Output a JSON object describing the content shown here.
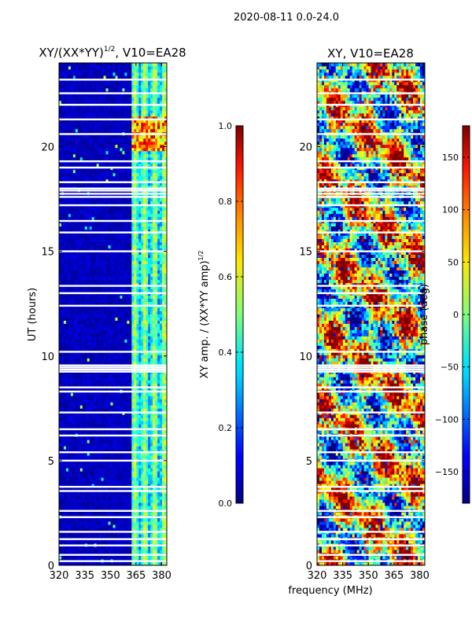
{
  "page": {
    "suptitle": "2020-08-11 0.0-24.0"
  },
  "chart_data": [
    {
      "type": "heatmap",
      "title": "XY/(XX*YY)",
      "title_sup": "1/2",
      "title_suffix": ", V10=EA28",
      "xlabel": "",
      "ylabel": "UT (hours)",
      "xlim": [
        320,
        383
      ],
      "ylim": [
        0,
        24
      ],
      "xticks": [
        320,
        335,
        350,
        365,
        380
      ],
      "yticks": [
        0,
        5,
        10,
        15,
        20
      ],
      "colorbar": {
        "label": "XY amp. / (XX*YY amp)",
        "label_sup": "1/2",
        "range": [
          0.0,
          1.0
        ],
        "ticks": [
          "0.0",
          "0.2",
          "0.4",
          "0.6",
          "0.8",
          "1.0"
        ],
        "colormap": "jet"
      },
      "description": "Mostly low values (dark blue) below ~363 MHz; elevated values (cyan/yellow/red) in bands near 363-383 MHz, strongest around 20-21.5 h"
    },
    {
      "type": "heatmap",
      "title": "XY, V10=EA28",
      "xlabel": "frequency (MHz)",
      "ylabel": "",
      "xlim": [
        320,
        383
      ],
      "ylim": [
        0,
        24
      ],
      "xticks": [
        320,
        335,
        350,
        365,
        380
      ],
      "yticks": [
        0,
        5,
        10,
        15,
        20
      ],
      "colorbar": {
        "label": "phase (deg)",
        "range": [
          -180,
          180
        ],
        "ticks": [
          "−150",
          "−100",
          "−50",
          "0",
          "50",
          "100",
          "150"
        ],
        "colormap": "jet"
      },
      "description": "Noisy phase pattern across all frequencies and times, blends of red/yellow/blue"
    }
  ],
  "colors": {
    "background": "#ffffff",
    "jet_low": "#00007f",
    "jet_high": "#7f0000"
  }
}
